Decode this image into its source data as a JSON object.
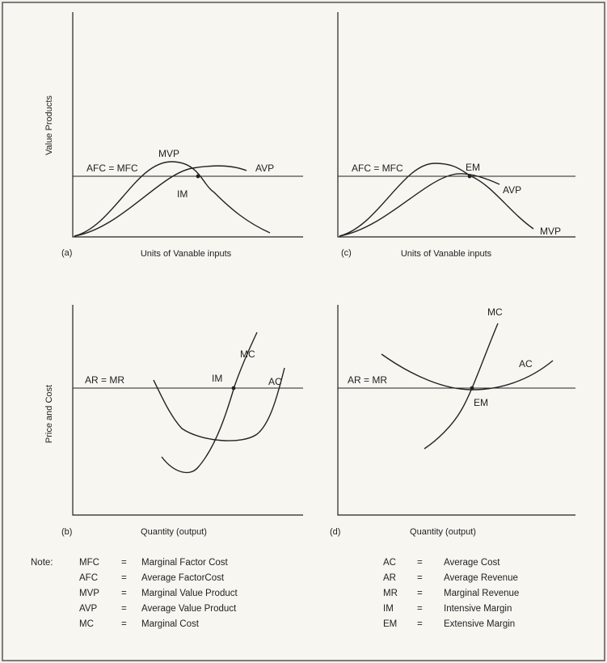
{
  "panels": {
    "a": {
      "tag": "(a)",
      "ylabel": "Value Products",
      "xlabel": "Units of Vanable inputs",
      "line_label": "AFC = MFC",
      "labels": {
        "mvp": "MVP",
        "avp": "AVP",
        "im": "IM"
      }
    },
    "c": {
      "tag": "(c)",
      "xlabel": "Units of Vanable inputs",
      "line_label": "AFC = MFC",
      "labels": {
        "em": "EM",
        "avp": "AVP",
        "mvp": "MVP"
      }
    },
    "b": {
      "tag": "(b)",
      "ylabel": "Price and Cost",
      "xlabel": "Quantity (output)",
      "line_label": "AR = MR",
      "labels": {
        "mc": "MC",
        "ac": "AC",
        "im": "IM"
      }
    },
    "d": {
      "tag": "(d)",
      "xlabel": "Quantity (output)",
      "line_label": "AR = MR",
      "labels": {
        "mc": "MC",
        "ac": "AC",
        "em": "EM"
      }
    }
  },
  "note": {
    "heading": "Note:",
    "left": [
      {
        "abbr": "MFC",
        "eq": "=",
        "def": "Marginal Factor Cost"
      },
      {
        "abbr": "AFC",
        "eq": "=",
        "def": "Average FactorCost"
      },
      {
        "abbr": "MVP",
        "eq": "=",
        "def": "Marginal Value Product"
      },
      {
        "abbr": "AVP",
        "eq": "=",
        "def": "Average Value Product"
      },
      {
        "abbr": "MC",
        "eq": "=",
        "def": "Marginal Cost"
      }
    ],
    "right": [
      {
        "abbr": "AC",
        "eq": "=",
        "def": "Average Cost"
      },
      {
        "abbr": "AR",
        "eq": "=",
        "def": "Average Revenue"
      },
      {
        "abbr": "MR",
        "eq": "=",
        "def": "Marginal Revenue"
      },
      {
        "abbr": "IM",
        "eq": "=",
        "def": "Intensive Margin"
      },
      {
        "abbr": "EM",
        "eq": "=",
        "def": "Extensive Margin"
      }
    ]
  }
}
